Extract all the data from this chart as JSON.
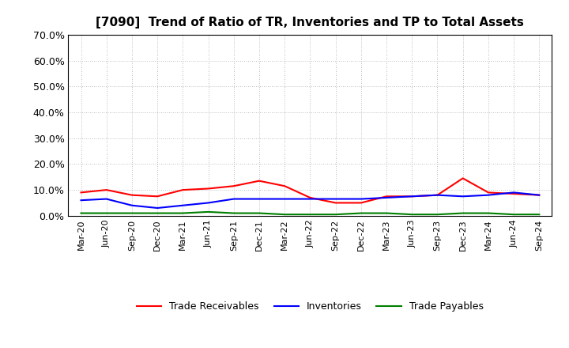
{
  "title": "[7090]  Trend of Ratio of TR, Inventories and TP to Total Assets",
  "x_labels": [
    "Mar-20",
    "Jun-20",
    "Sep-20",
    "Dec-20",
    "Mar-21",
    "Jun-21",
    "Sep-21",
    "Dec-21",
    "Mar-22",
    "Jun-22",
    "Sep-22",
    "Dec-22",
    "Mar-23",
    "Jun-23",
    "Sep-23",
    "Dec-23",
    "Mar-24",
    "Jun-24",
    "Sep-24"
  ],
  "trade_receivables": [
    0.09,
    0.1,
    0.08,
    0.075,
    0.1,
    0.105,
    0.115,
    0.135,
    0.115,
    0.07,
    0.05,
    0.05,
    0.075,
    0.075,
    0.08,
    0.145,
    0.09,
    0.085,
    0.08
  ],
  "inventories": [
    0.06,
    0.065,
    0.04,
    0.03,
    0.04,
    0.05,
    0.065,
    0.065,
    0.065,
    0.065,
    0.065,
    0.065,
    0.07,
    0.075,
    0.08,
    0.075,
    0.08,
    0.09,
    0.08
  ],
  "trade_payables": [
    0.01,
    0.01,
    0.01,
    0.01,
    0.01,
    0.015,
    0.01,
    0.01,
    0.005,
    0.005,
    0.005,
    0.01,
    0.01,
    0.005,
    0.005,
    0.01,
    0.01,
    0.005,
    0.005
  ],
  "tr_color": "#FF0000",
  "inv_color": "#0000FF",
  "tp_color": "#008000",
  "ylim": [
    0.0,
    0.7
  ],
  "yticks": [
    0.0,
    0.1,
    0.2,
    0.3,
    0.4,
    0.5,
    0.6,
    0.7
  ],
  "bg_color": "#FFFFFF",
  "plot_bg_color": "#FFFFFF",
  "grid_color": "#AAAAAA",
  "legend_labels": [
    "Trade Receivables",
    "Inventories",
    "Trade Payables"
  ]
}
